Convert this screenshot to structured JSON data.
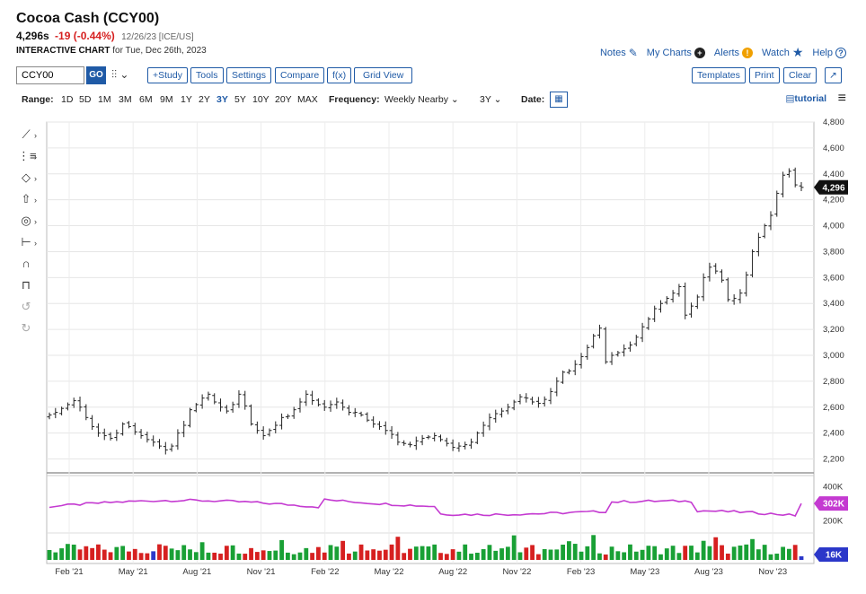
{
  "header": {
    "title": "Cocoa Cash (CCY00)",
    "last": "4,296s",
    "change": "-19 (-0.44%)",
    "meta": "12/26/23 [ICE/US]",
    "subtitle_bold": "INTERACTIVE CHART",
    "subtitle_rest": " for Tue, Dec 26th, 2023"
  },
  "toplinks": {
    "notes": "Notes",
    "my_charts": "My Charts",
    "alerts": "Alerts",
    "watch": "Watch",
    "help": "Help"
  },
  "toolbar": {
    "symbol_value": "CCY00",
    "go": "GO",
    "chart_type_icon": "candles-icon",
    "study": "+Study",
    "tools": "Tools",
    "settings": "Settings",
    "compare": "Compare",
    "fx": "f(x)",
    "grid_view": "Grid View",
    "templates": "Templates",
    "print": "Print",
    "clear": "Clear",
    "expand": "↗"
  },
  "rangebar": {
    "range_label": "Range:",
    "ranges": [
      "1D",
      "5D",
      "1M",
      "3M",
      "6M",
      "9M",
      "1Y",
      "2Y",
      "3Y",
      "5Y",
      "10Y",
      "20Y",
      "MAX"
    ],
    "active_range": "3Y",
    "frequency_label": "Frequency:",
    "frequency_value": "Weekly Nearby",
    "period_value": "3Y",
    "date_label": "Date:",
    "tutorial": "tutorial"
  },
  "left_tools": [
    "line-tool-icon",
    "fib-tool-icon",
    "shape-tool-icon",
    "arrow-tool-icon",
    "measure-icon",
    "projection-icon",
    "magnet-icon",
    "lock-icon",
    "undo-icon",
    "redo-icon"
  ],
  "colors": {
    "accent": "#1f5aa6",
    "down": "#d62020",
    "oi_line": "#c43ad1",
    "vol_up": "#19a035",
    "vol_down": "#d62020",
    "vol_last": "#2b37c9"
  },
  "chart_data": [
    {
      "type": "ohlc",
      "title": "",
      "x_tick_labels": [
        "Feb '21",
        "May '21",
        "Aug '21",
        "Nov '21",
        "Feb '22",
        "May '22",
        "Aug '22",
        "Nov '22",
        "Feb '23",
        "May '23",
        "Aug '23",
        "Nov '23"
      ],
      "y_tick_labels": [
        "4,800",
        "4,600",
        "4,400",
        "4,200",
        "4,000",
        "3,800",
        "3,600",
        "3,400",
        "3,200",
        "3,000",
        "2,800",
        "2,600",
        "2,400",
        "2,200"
      ],
      "ylim": [
        2100,
        4800
      ],
      "last_price_label": "4,296",
      "weekly_close": [
        2540,
        2560,
        2590,
        2620,
        2650,
        2600,
        2520,
        2450,
        2400,
        2380,
        2360,
        2400,
        2470,
        2450,
        2410,
        2380,
        2350,
        2330,
        2300,
        2270,
        2300,
        2400,
        2460,
        2580,
        2620,
        2670,
        2700,
        2640,
        2600,
        2570,
        2620,
        2700,
        2610,
        2470,
        2420,
        2380,
        2420,
        2460,
        2520,
        2530,
        2580,
        2640,
        2700,
        2650,
        2620,
        2600,
        2620,
        2640,
        2600,
        2560,
        2560,
        2540,
        2500,
        2470,
        2450,
        2420,
        2390,
        2330,
        2320,
        2310,
        2340,
        2360,
        2370,
        2380,
        2350,
        2320,
        2290,
        2300,
        2310,
        2330,
        2400,
        2460,
        2520,
        2550,
        2570,
        2600,
        2640,
        2680,
        2670,
        2640,
        2630,
        2660,
        2720,
        2800,
        2870,
        2880,
        2930,
        2990,
        3060,
        3150,
        3210,
        2950,
        3000,
        3020,
        3050,
        3080,
        3140,
        3220,
        3280,
        3360,
        3400,
        3440,
        3480,
        3530,
        3310,
        3380,
        3450,
        3600,
        3680,
        3650,
        3580,
        3430,
        3440,
        3480,
        3620,
        3800,
        3910,
        4000,
        4080,
        4250,
        4390,
        4420,
        4315,
        4296
      ],
      "open_interest": {
        "last_label": "302K",
        "tick_labels": [
          "400K",
          "200K"
        ],
        "ylim": [
          150,
          450
        ]
      },
      "volume": {
        "last_label": "16K"
      }
    }
  ]
}
